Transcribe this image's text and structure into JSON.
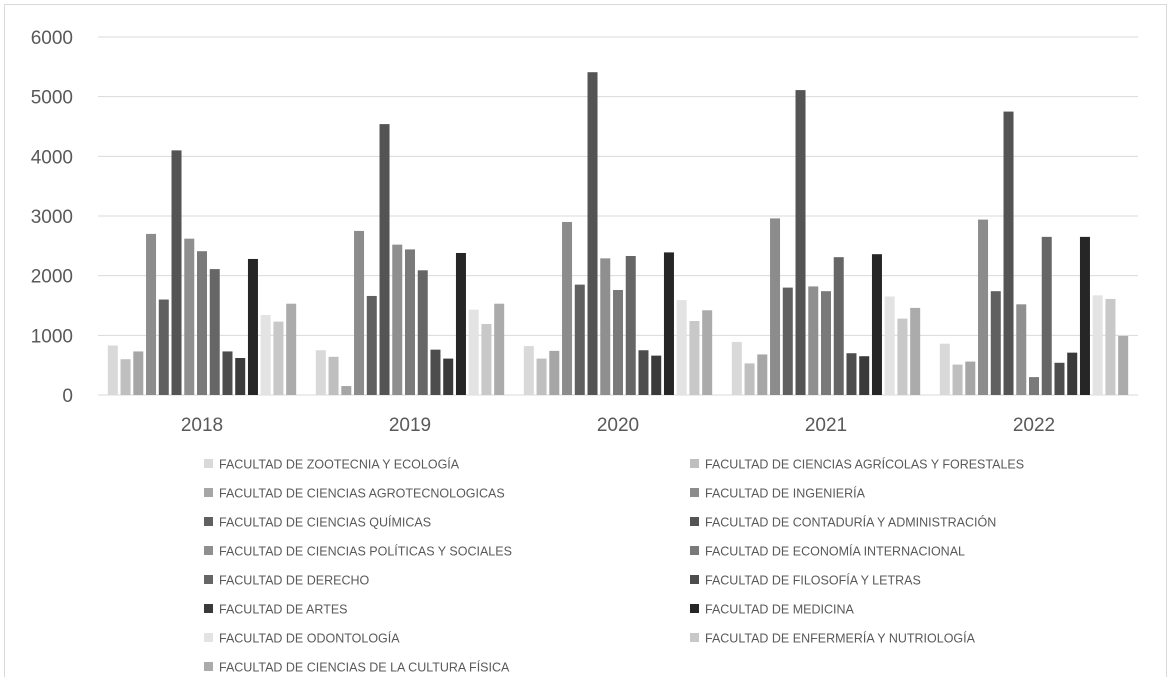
{
  "chart_data": {
    "type": "bar",
    "categories": [
      "2018",
      "2019",
      "2020",
      "2021",
      "2022"
    ],
    "ylim": [
      0,
      6000
    ],
    "yticks": [
      0,
      1000,
      2000,
      3000,
      4000,
      5000,
      6000
    ],
    "grid": true,
    "legend_position": "bottom",
    "series": [
      {
        "name": "FACULTAD DE ZOOTECNIA Y ECOLOGÍA",
        "color": "#d9d9d9",
        "values": [
          830,
          750,
          820,
          890,
          860
        ]
      },
      {
        "name": "FACULTAD DE CIENCIAS AGRÍCOLAS Y FORESTALES",
        "color": "#bfbfbf",
        "values": [
          600,
          640,
          610,
          530,
          510
        ]
      },
      {
        "name": "FACULTAD DE CIENCIAS AGROTECNOLOGICAS",
        "color": "#a6a6a6",
        "values": [
          730,
          150,
          740,
          680,
          560
        ]
      },
      {
        "name": "FACULTAD DE INGENIERÍA",
        "color": "#8c8c8c",
        "values": [
          2700,
          2750,
          2900,
          2960,
          2940
        ]
      },
      {
        "name": "FACULTAD DE CIENCIAS QUÍMICAS",
        "color": "#606060",
        "values": [
          1600,
          1660,
          1850,
          1800,
          1740
        ]
      },
      {
        "name": "FACULTAD DE CONTADURÍA Y ADMINISTRACIÓN",
        "color": "#545454",
        "values": [
          4100,
          4540,
          5410,
          5110,
          4750
        ]
      },
      {
        "name": "FACULTAD DE CIENCIAS POLÍTICAS Y SOCIALES",
        "color": "#8f8f8f",
        "values": [
          2620,
          2520,
          2290,
          1820,
          1520
        ]
      },
      {
        "name": "FACULTAD DE ECONOMÍA INTERNACIONAL",
        "color": "#7a7a7a",
        "values": [
          2410,
          2440,
          1760,
          1740,
          300
        ]
      },
      {
        "name": "FACULTAD DE DERECHO",
        "color": "#666666",
        "values": [
          2110,
          2090,
          2330,
          2310,
          2650
        ]
      },
      {
        "name": "FACULTAD DE FILOSOFÍA Y LETRAS",
        "color": "#4d4d4d",
        "values": [
          730,
          760,
          750,
          700,
          540
        ]
      },
      {
        "name": "FACULTAD DE ARTES",
        "color": "#3a3a3a",
        "values": [
          620,
          610,
          660,
          650,
          710
        ]
      },
      {
        "name": "FACULTAD DE MEDICINA",
        "color": "#262626",
        "values": [
          2280,
          2380,
          2390,
          2360,
          2650
        ]
      },
      {
        "name": "FACULTAD DE ODONTOLOGÍA",
        "color": "#e3e3e3",
        "values": [
          1340,
          1430,
          1590,
          1650,
          1670
        ]
      },
      {
        "name": "FACULTAD DE ENFERMERÍA Y NUTRIOLOGÍA",
        "color": "#c8c8c8",
        "values": [
          1230,
          1190,
          1240,
          1280,
          1610
        ]
      },
      {
        "name": "FACULTAD DE CIENCIAS DE LA CULTURA FÍSICA",
        "color": "#ababab",
        "values": [
          1530,
          1530,
          1420,
          1460,
          990
        ]
      }
    ]
  }
}
